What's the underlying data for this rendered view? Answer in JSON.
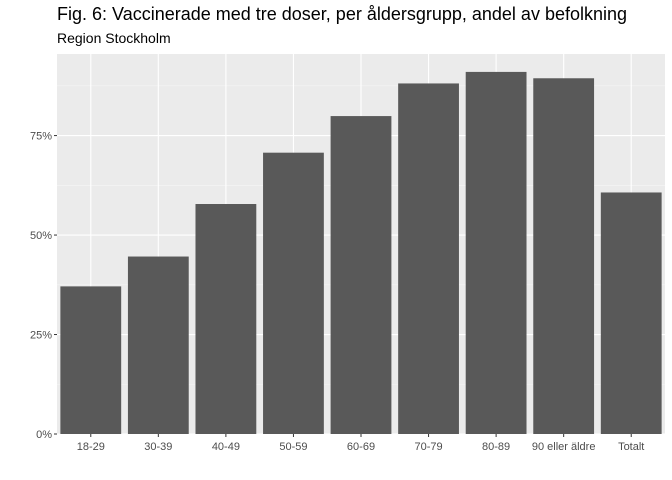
{
  "chart_data": {
    "type": "bar",
    "title": "Fig. 6: Vaccinerade med tre doser, per åldersgrupp, andel av befolkning",
    "subtitle": "Region Stockholm",
    "xlabel": "",
    "ylabel": "",
    "categories": [
      "18-29",
      "30-39",
      "40-49",
      "50-59",
      "60-69",
      "70-79",
      "80-89",
      "90 eller äldre",
      "Totalt"
    ],
    "values": [
      0.371,
      0.446,
      0.578,
      0.707,
      0.799,
      0.881,
      0.91,
      0.894,
      0.607
    ],
    "ylim": [
      0,
      0.955
    ],
    "yticks": [
      0,
      0.25,
      0.5,
      0.75
    ],
    "ytick_labels": [
      "0%",
      "25%",
      "50%",
      "75%"
    ],
    "grid": true,
    "legend": "none",
    "colors": {
      "bar": "#595959",
      "panel": "#ebebeb",
      "grid_major": "#ffffff"
    }
  }
}
